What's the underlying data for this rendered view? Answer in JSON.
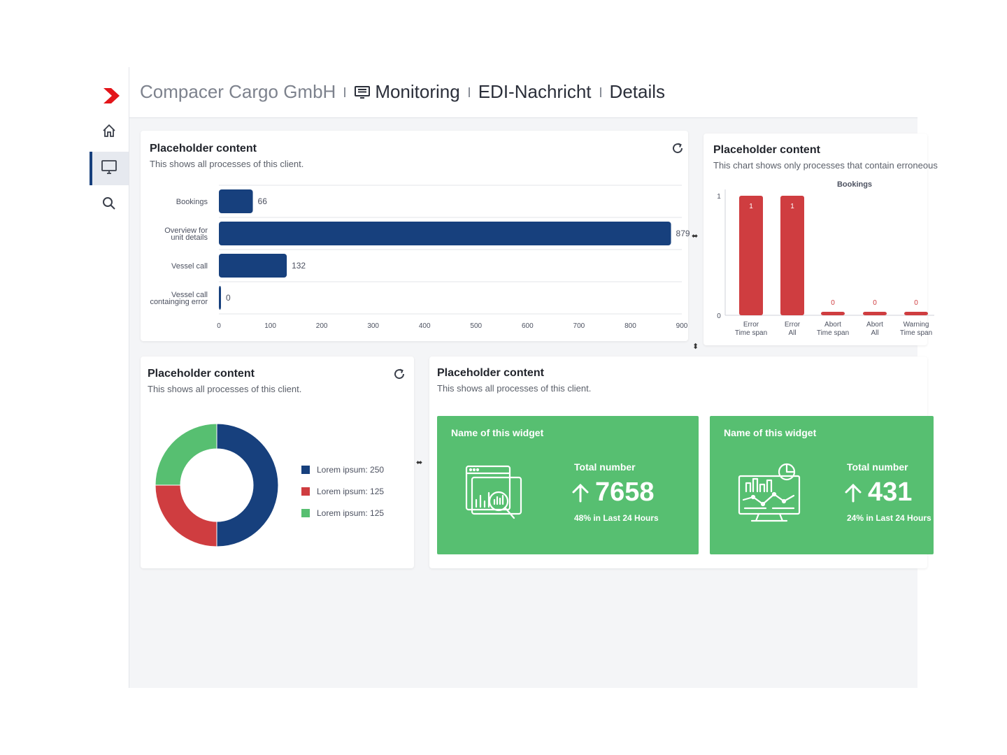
{
  "colors": {
    "navy": "#17407d",
    "red": "#cf3d40",
    "green": "#57bf71",
    "logo_red": "#e3151a"
  },
  "sidebar": {
    "logo": "chevron-logo-icon",
    "items": [
      {
        "icon": "home-icon",
        "active": false
      },
      {
        "icon": "monitor-icon",
        "active": true
      },
      {
        "icon": "search-icon",
        "active": false
      }
    ]
  },
  "header": {
    "company": "Compacer Cargo GmbH",
    "crumbs": [
      "Monitoring",
      "EDI-Nachricht",
      "Details"
    ],
    "crumb_icon": "message-icon"
  },
  "cards": {
    "bar_card": {
      "title": "Placeholder content",
      "subtitle": "This shows all processes of this client."
    },
    "error_card": {
      "title": "Placeholder content",
      "subtitle": "This chart shows only processes that contain erroneous"
    },
    "donut_card": {
      "title": "Placeholder content",
      "subtitle": "This shows all processes of this client."
    },
    "kpi_card": {
      "title": "Placeholder content",
      "subtitle": "This shows all processes of this client."
    }
  },
  "chart_data": [
    {
      "type": "bar",
      "orientation": "horizontal",
      "categories": [
        [
          "Bookings"
        ],
        [
          "Overview for",
          "unit details"
        ],
        [
          "Vessel call"
        ],
        [
          "Vessel call",
          "containging error"
        ]
      ],
      "values": [
        66,
        879,
        132,
        0
      ],
      "xlim": [
        0,
        900
      ],
      "xticks": [
        0,
        100,
        200,
        300,
        400,
        500,
        600,
        700,
        800,
        900
      ],
      "grid": true,
      "color": "#17407d"
    },
    {
      "type": "bar",
      "title": "Bookings",
      "categories": [
        [
          "Error",
          "Time span"
        ],
        [
          "Error",
          "All"
        ],
        [
          "Abort",
          "Time span"
        ],
        [
          "Abort",
          "All"
        ],
        [
          "Warning",
          "Time span"
        ]
      ],
      "values": [
        1,
        1,
        0,
        0,
        0
      ],
      "ylim": [
        0,
        1
      ],
      "yticks": [
        0,
        1
      ],
      "color": "#cf3d40"
    },
    {
      "type": "pie",
      "donut": true,
      "slices": [
        {
          "label": "Lorem ipsum: 250",
          "value": 250,
          "color": "#17407d"
        },
        {
          "label": "Lorem ipsum: 125",
          "value": 125,
          "color": "#cf3d40"
        },
        {
          "label": "Lorem ipsum: 125",
          "value": 125,
          "color": "#57bf71"
        }
      ],
      "legend": "right"
    }
  ],
  "kpis": [
    {
      "name": "Name of this widget",
      "label": "Total number",
      "value": "7658",
      "trend": "48% in Last 24 Hours",
      "icon": "data-analysis-icon"
    },
    {
      "name": "Name of this widget",
      "label": "Total number",
      "value": "431",
      "trend": "24% in Last 24 Hours",
      "icon": "dashboard-monitor-icon"
    }
  ]
}
